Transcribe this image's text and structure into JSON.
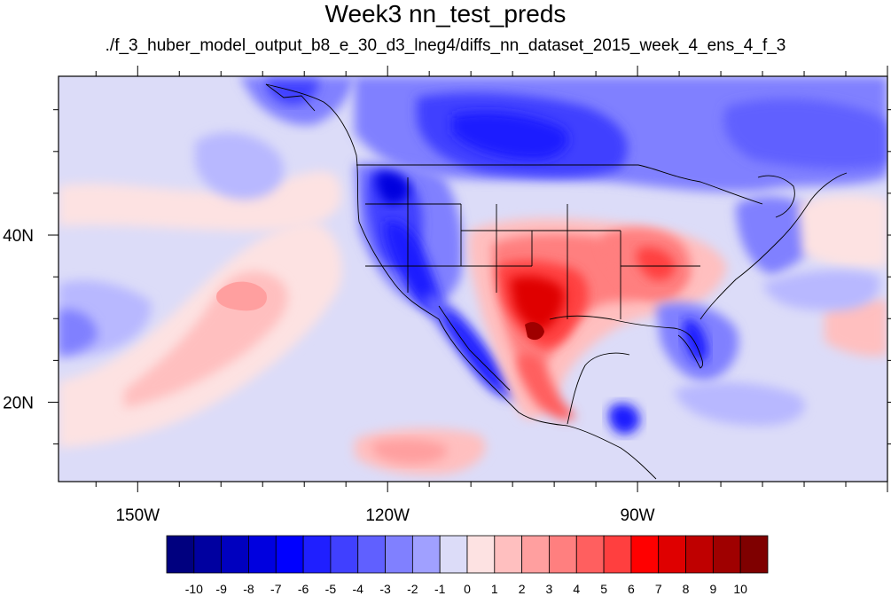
{
  "title": "Week3 nn_test_preds",
  "subtitle": "./f_3_huber_model_output_b8_e_30_d3_lneg4/diffs_nn_dataset_2015_week_4_ens_4_f_3",
  "map": {
    "projection": "cylindrical equidistant",
    "lon_range": [
      -159.5,
      -60
    ],
    "lat_range": [
      10.5,
      59
    ],
    "region": "North America and adjacent Pacific / Atlantic",
    "x_ticks": [
      {
        "lon": -150,
        "label": "150W"
      },
      {
        "lon": -120,
        "label": "120W"
      },
      {
        "lon": -90,
        "label": "90W"
      }
    ],
    "y_ticks": [
      {
        "lat": 40,
        "label": "40N"
      },
      {
        "lat": 20,
        "label": "20N"
      }
    ]
  },
  "colorbar": {
    "labels": [
      "-10",
      "-9",
      "-8",
      "-7",
      "-6",
      "-5",
      "-4",
      "-3",
      "-2",
      "-1",
      "0",
      "1",
      "2",
      "3",
      "4",
      "5",
      "6",
      "7",
      "8",
      "9",
      "10"
    ],
    "colors": [
      "#00007f",
      "#0000a0",
      "#0000bf",
      "#0000df",
      "#0000ff",
      "#1f1fff",
      "#4040ff",
      "#6060ff",
      "#8080ff",
      "#a0a0ff",
      "#dcdcf8",
      "#fde2e2",
      "#ffbfbf",
      "#ff9f9f",
      "#ff7f7f",
      "#ff5f5f",
      "#ff3f3f",
      "#ff0000",
      "#df0000",
      "#bf0000",
      "#9f0000",
      "#7f0000"
    ]
  },
  "field_features": [
    {
      "name": "pacific-subtropical-warm-band",
      "value": 2,
      "lon": -130,
      "lat": 30
    },
    {
      "name": "pacific-northeast-cool-patch",
      "value": -2,
      "lon": -133,
      "lat": 48
    },
    {
      "name": "canada-cold-anomaly",
      "value": -4,
      "lon": -100,
      "lat": 53
    },
    {
      "name": "hudson-cold-anomaly",
      "value": -3,
      "lon": -72,
      "lat": 53
    },
    {
      "name": "western-us-cold-anomaly",
      "value": -5,
      "lon": -117,
      "lat": 40
    },
    {
      "name": "pacific-northwest-cold-core",
      "value": -7,
      "lon": -121,
      "lat": 46
    },
    {
      "name": "baja-cold-anomaly",
      "value": -5,
      "lon": -112,
      "lat": 27
    },
    {
      "name": "southern-plains-warm-anomaly",
      "value": 7,
      "lon": -100,
      "lat": 33
    },
    {
      "name": "texas-warm-core",
      "value": 9,
      "lon": -102,
      "lat": 28
    },
    {
      "name": "ohio-valley-warm-anomaly",
      "value": 5,
      "lon": -88,
      "lat": 37
    },
    {
      "name": "mexico-warm-anomaly",
      "value": 5,
      "lon": -102,
      "lat": 21
    },
    {
      "name": "florida-cold-spot",
      "value": -4,
      "lon": -82,
      "lat": 27
    },
    {
      "name": "central-america-cold-spot",
      "value": -5,
      "lon": -90,
      "lat": 17
    },
    {
      "name": "atlantic-warm-band",
      "value": 1,
      "lon": -65,
      "lat": 33
    },
    {
      "name": "east-pacific-warm-patch",
      "value": 2,
      "lon": -110,
      "lat": 14
    }
  ]
}
